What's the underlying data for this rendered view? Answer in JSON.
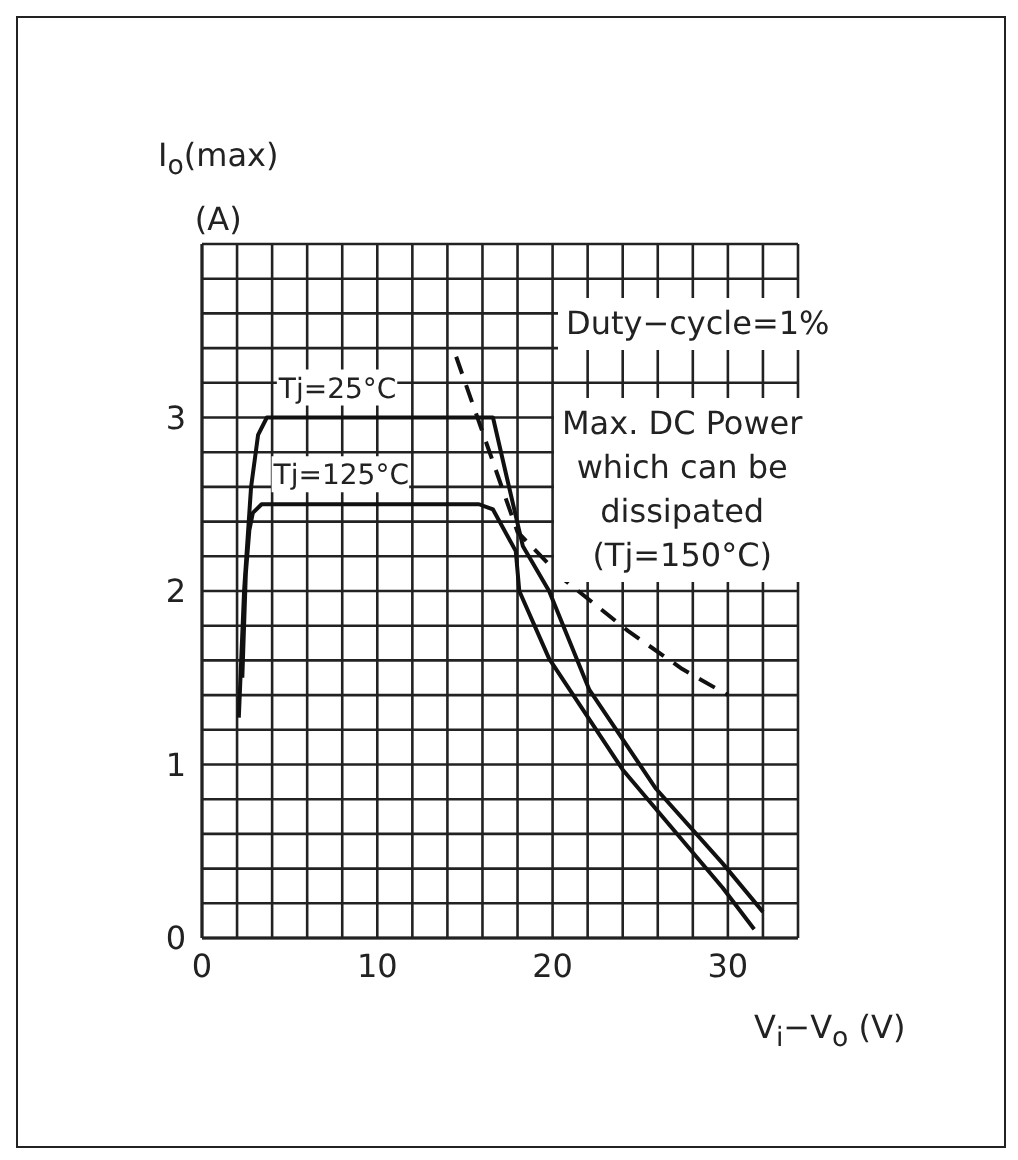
{
  "chart_data": {
    "type": "line",
    "xlabel": "V$_{i}$−V$_{o}$ (V)",
    "ylabel": "I$_{o}$(max)\n(A)",
    "xlim": [
      0,
      34
    ],
    "ylim": [
      0,
      4
    ],
    "xticks": [
      0,
      {
        "value": 2,
        "label": null
      },
      {
        "value": 4,
        "label": null
      },
      {
        "value": 6,
        "label": null
      },
      {
        "value": 8,
        "label": null
      },
      10,
      {
        "value": 12,
        "label": null
      },
      {
        "value": 14,
        "label": null
      },
      {
        "value": 16,
        "label": null
      },
      {
        "value": 18,
        "label": null
      },
      20,
      {
        "value": 22,
        "label": null
      },
      {
        "value": 24,
        "label": null
      },
      {
        "value": 26,
        "label": null
      },
      {
        "value": 28,
        "label": null
      },
      30,
      {
        "value": 32,
        "label": null
      },
      {
        "value": 34,
        "label": null
      }
    ],
    "yticks": [
      0,
      {
        "value": 0.2,
        "label": null
      },
      {
        "value": 0.4,
        "label": null
      },
      {
        "value": 0.6,
        "label": null
      },
      {
        "value": 0.8,
        "label": null
      },
      1,
      {
        "value": 1.2,
        "label": null
      },
      {
        "value": 1.4,
        "label": null
      },
      {
        "value": 1.6,
        "label": null
      },
      {
        "value": 1.8,
        "label": null
      },
      2,
      {
        "value": 2.2,
        "label": null
      },
      {
        "value": 2.4,
        "label": null
      },
      {
        "value": 2.6,
        "label": null
      },
      {
        "value": 2.8,
        "label": null
      },
      3,
      {
        "value": 3.2,
        "label": null
      },
      {
        "value": 3.4,
        "label": null
      },
      {
        "value": 3.6,
        "label": null
      },
      {
        "value": 3.8,
        "label": null
      },
      {
        "value": 4,
        "label": null
      }
    ],
    "grid": true,
    "legend": false,
    "marker": "none",
    "series": [
      {
        "name": "Tj=25°C",
        "color": "#111111",
        "line_style": "solid",
        "x": [
          2.1,
          2.4,
          2.8,
          3.2,
          3.7,
          16.6,
          17.4,
          18.3,
          19.8,
          22.1,
          25.9,
          29.7,
          32
        ],
        "values": [
          1.27,
          2.0,
          2.6,
          2.9,
          3,
          3,
          2.65,
          2.26,
          2.0,
          1.43,
          0.86,
          0.43,
          0.15
        ]
      },
      {
        "name": "Tj=125°C",
        "color": "#111111",
        "line_style": "solid",
        "x": [
          2.3,
          2.5,
          2.7,
          2.9,
          3.4,
          15.8,
          16.6,
          17.9,
          18.1,
          19.8,
          24,
          29.7,
          31.5
        ],
        "values": [
          1.5,
          2.1,
          2.35,
          2.45,
          2.5,
          2.5,
          2.47,
          2.23,
          2.0,
          1.61,
          0.97,
          0.29,
          0.05
        ]
      },
      {
        "color": "#111111",
        "line_style": "dashed",
        "x": [
          14.5,
          18,
          20.6,
          24.3,
          27.4,
          30
        ],
        "values": [
          3.35,
          2.34,
          2.07,
          1.77,
          1.55,
          1.4
        ]
      }
    ],
    "annotations": [
      "Duty−cycle=1%",
      "Max. DC Power\nwhich can be\ndissipated\n(Tj=150°C)"
    ]
  }
}
